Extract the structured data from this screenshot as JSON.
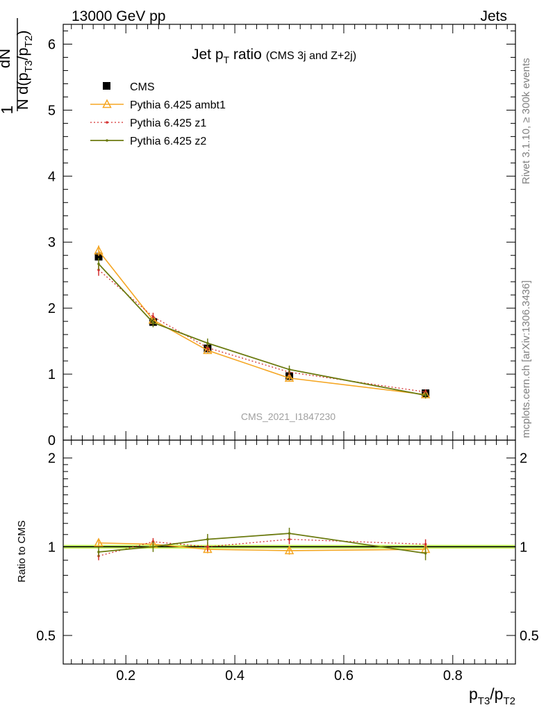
{
  "header": {
    "left": "13000 GeV pp",
    "right": "Jets"
  },
  "side_labels": {
    "rivet": "Rivet 3.1.10, ≥ 300k events",
    "mcplots": "mcplots.cern.ch [arXiv:1306.3436]"
  },
  "watermark": "CMS_2021_I1847230",
  "title": {
    "main": "Jet p",
    "sub": "T",
    "rest": " ratio",
    "small": "(CMS 3j and Z+2j)"
  },
  "ylabel": {
    "num": "dN",
    "den_pre": "N d(p",
    "den_s1": "T3",
    "den_mid": "/p",
    "den_s2": "T2",
    "den_post": ")",
    "one": "1"
  },
  "xlabel": {
    "p1": "p",
    "s1": "T3",
    "mid": "/p",
    "s2": "T2"
  },
  "ratio_ylabel": "Ratio to CMS",
  "colors": {
    "cms": "#000000",
    "ambt1": "#f5a623",
    "z1": "#d32f2f",
    "z2": "#6b7a0f",
    "band": "#ccff66"
  },
  "chart_data": [
    {
      "type": "line",
      "panel": "main",
      "xlim": [
        0.085,
        0.915
      ],
      "ylim": [
        0,
        6.3
      ],
      "yticks": [
        0,
        1,
        2,
        3,
        4,
        5,
        6
      ],
      "x": [
        0.15,
        0.25,
        0.35,
        0.5,
        0.75
      ],
      "legend": "top-left",
      "series": [
        {
          "name": "CMS",
          "key": "cms",
          "values": [
            2.78,
            1.79,
            1.39,
            0.97,
            0.71
          ],
          "errors": [
            0.04,
            0.03,
            0.03,
            0.02,
            0.02
          ]
        },
        {
          "name": "Pythia 6.425 ambt1",
          "key": "ambt1",
          "values": [
            2.87,
            1.82,
            1.36,
            0.94,
            0.69
          ],
          "errors": [
            0.08,
            0.05,
            0.05,
            0.04,
            0.03
          ]
        },
        {
          "name": "Pythia 6.425 z1",
          "key": "z1",
          "values": [
            2.58,
            1.87,
            1.4,
            1.03,
            0.73
          ],
          "errors": [
            0.09,
            0.06,
            0.05,
            0.05,
            0.04
          ]
        },
        {
          "name": "Pythia 6.425 z2",
          "key": "z2",
          "values": [
            2.67,
            1.78,
            1.47,
            1.07,
            0.68
          ],
          "errors": [
            0.09,
            0.07,
            0.07,
            0.06,
            0.05
          ]
        }
      ]
    },
    {
      "type": "line",
      "panel": "ratio",
      "ylabel": "Ratio to CMS",
      "log_scale": true,
      "xlim": [
        0.085,
        0.915
      ],
      "ylim": [
        0.4,
        2.3
      ],
      "yticks": [
        0.5,
        1,
        2
      ],
      "xticks": [
        0.2,
        0.4,
        0.6,
        0.8
      ],
      "x": [
        0.15,
        0.25,
        0.35,
        0.5,
        0.75
      ],
      "band": [
        0.985,
        1.015
      ],
      "series": [
        {
          "name": "Pythia 6.425 ambt1",
          "key": "ambt1",
          "values": [
            1.03,
            1.02,
            0.98,
            0.97,
            0.98
          ],
          "errors": [
            0.025,
            0.025,
            0.03,
            0.03,
            0.035
          ]
        },
        {
          "name": "Pythia 6.425 z1",
          "key": "z1",
          "values": [
            0.93,
            1.04,
            1.0,
            1.06,
            1.02
          ],
          "errors": [
            0.03,
            0.03,
            0.035,
            0.04,
            0.04
          ]
        },
        {
          "name": "Pythia 6.425 z2",
          "key": "z2",
          "values": [
            0.96,
            1.0,
            1.06,
            1.11,
            0.95
          ],
          "errors": [
            0.035,
            0.04,
            0.045,
            0.05,
            0.05
          ]
        }
      ]
    }
  ]
}
